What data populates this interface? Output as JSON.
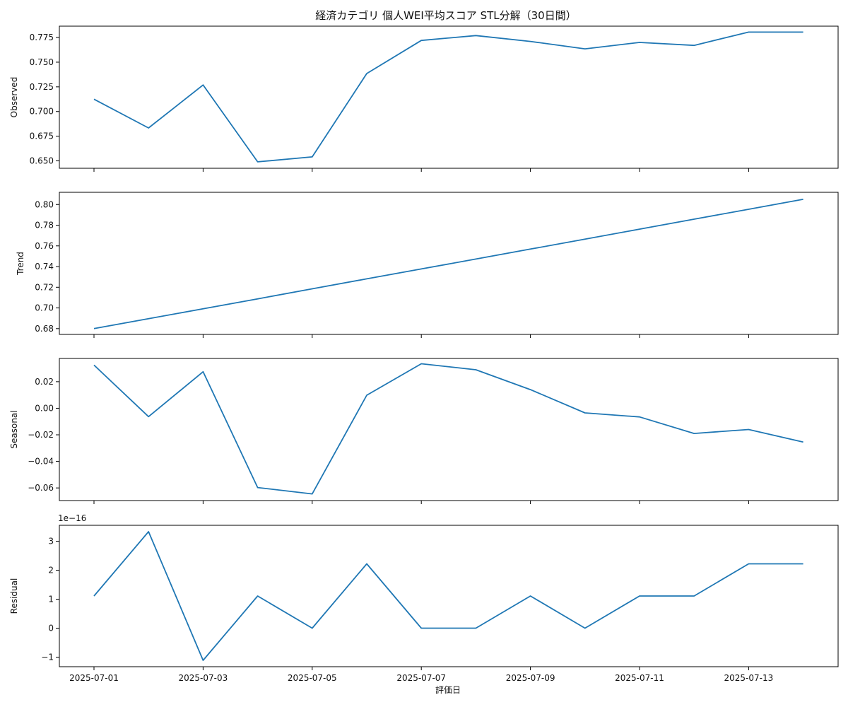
{
  "chart_data": {
    "type": "line",
    "title": "経済カテゴリ 個人WEI平均スコア STL分解（30日間）",
    "xlabel": "評価日",
    "x": [
      "2025-07-01",
      "2025-07-02",
      "2025-07-03",
      "2025-07-04",
      "2025-07-05",
      "2025-07-06",
      "2025-07-07",
      "2025-07-08",
      "2025-07-09",
      "2025-07-10",
      "2025-07-11",
      "2025-07-12",
      "2025-07-13",
      "2025-07-14"
    ],
    "x_tick_labels": [
      "2025-07-01",
      "2025-07-03",
      "2025-07-05",
      "2025-07-07",
      "2025-07-09",
      "2025-07-11",
      "2025-07-13"
    ],
    "line_color": "#1f77b4",
    "panels": [
      {
        "name": "observed",
        "ylabel": "Observed",
        "values": [
          0.7125,
          0.6833,
          0.7269,
          0.649,
          0.654,
          0.7385,
          0.772,
          0.777,
          0.771,
          0.7635,
          0.77,
          0.767,
          0.7805,
          0.7805
        ],
        "ylim": [
          0.6425,
          0.7865
        ],
        "yticks": [
          0.65,
          0.675,
          0.7,
          0.725,
          0.75,
          0.775
        ],
        "ytick_labels": [
          "0.650",
          "0.675",
          "0.700",
          "0.725",
          "0.750",
          "0.775"
        ]
      },
      {
        "name": "trend",
        "ylabel": "Trend",
        "values": [
          0.68,
          0.6896,
          0.6992,
          0.7088,
          0.7185,
          0.7281,
          0.7377,
          0.7473,
          0.7569,
          0.7665,
          0.7762,
          0.7858,
          0.7954,
          0.805
        ],
        "ylim": [
          0.6744,
          0.8118
        ],
        "yticks": [
          0.68,
          0.7,
          0.72,
          0.74,
          0.76,
          0.78,
          0.8
        ],
        "ytick_labels": [
          "0.68",
          "0.70",
          "0.72",
          "0.74",
          "0.76",
          "0.78",
          "0.80"
        ]
      },
      {
        "name": "seasonal",
        "ylabel": "Seasonal",
        "values": [
          0.0325,
          -0.0063,
          0.0275,
          -0.0597,
          -0.0645,
          0.0098,
          0.0335,
          0.029,
          0.014,
          -0.0035,
          -0.0065,
          -0.019,
          -0.016,
          -0.0255
        ],
        "ylim": [
          -0.0695,
          0.0375
        ],
        "yticks": [
          -0.06,
          -0.04,
          -0.02,
          0.0,
          0.02
        ],
        "ytick_labels": [
          "−0.06",
          "−0.04",
          "−0.02",
          "0.00",
          "0.02"
        ]
      },
      {
        "name": "residual",
        "ylabel": "Residual",
        "offset_text": "1e−16",
        "values": [
          1.11,
          3.33,
          -1.11,
          1.11,
          0.0,
          2.22,
          0.0,
          0.0,
          1.11,
          0.0,
          1.11,
          1.11,
          2.22,
          2.22
        ],
        "ylim": [
          -1.33,
          3.55
        ],
        "yticks": [
          -1,
          0,
          1,
          2,
          3
        ],
        "ytick_labels": [
          "−1",
          "0",
          "1",
          "2",
          "3"
        ]
      }
    ]
  }
}
